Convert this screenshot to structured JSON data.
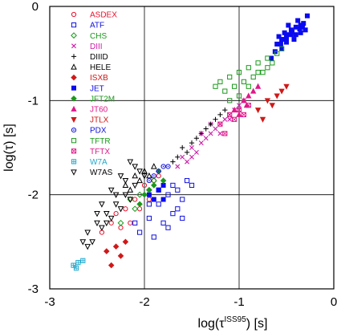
{
  "chart_data": {
    "type": "scatter",
    "title": "",
    "xlabel_base": "log(τ",
    "xlabel_sup": "ISS95",
    "xlabel_tail": ") [s]",
    "ylabel": "log(τ) [s]",
    "xlim": [
      -3,
      0
    ],
    "ylim": [
      -3,
      0
    ],
    "grid": true,
    "legend_position": "top-left",
    "x_ticks": [
      {
        "value": -3,
        "label": "-3"
      },
      {
        "value": -2,
        "label": "-2"
      },
      {
        "value": -1,
        "label": "-1"
      },
      {
        "value": 0,
        "label": "0"
      }
    ],
    "y_ticks": [
      {
        "value": 0,
        "label": "0"
      },
      {
        "value": -1,
        "label": "-1"
      },
      {
        "value": -2,
        "label": "-2"
      },
      {
        "value": -3,
        "label": "-3"
      }
    ],
    "series": [
      {
        "name": "ASDEX",
        "marker": "circle-open",
        "color": "#e8112d",
        "points": [
          [
            -2.45,
            -2.4
          ],
          [
            -2.3,
            -2.2
          ],
          [
            -2.2,
            -2.15
          ],
          [
            -2.1,
            -2.05
          ],
          [
            -2.0,
            -1.9
          ],
          [
            -1.9,
            -1.85
          ],
          [
            -2.15,
            -2.3
          ],
          [
            -2.05,
            -2.15
          ],
          [
            -1.95,
            -2.05
          ],
          [
            -2.25,
            -2.35
          ],
          [
            -2.35,
            -2.3
          ],
          [
            -1.85,
            -1.8
          ]
        ]
      },
      {
        "name": "ATF",
        "marker": "square-open",
        "color": "#1010e0",
        "points": [
          [
            -1.95,
            -2.25
          ],
          [
            -1.85,
            -2.1
          ],
          [
            -1.75,
            -2.0
          ],
          [
            -1.65,
            -1.95
          ],
          [
            -1.8,
            -2.3
          ],
          [
            -1.7,
            -2.2
          ],
          [
            -1.6,
            -2.05
          ],
          [
            -1.55,
            -1.85
          ],
          [
            -2.05,
            -2.4
          ],
          [
            -1.9,
            -2.45
          ],
          [
            -1.75,
            -2.35
          ],
          [
            -1.85,
            -1.95
          ],
          [
            -1.6,
            -2.25
          ],
          [
            -1.7,
            -1.9
          ],
          [
            -1.95,
            -2.1
          ],
          [
            -2.1,
            -2.3
          ],
          [
            -1.5,
            -1.9
          ],
          [
            -1.65,
            -2.15
          ]
        ]
      },
      {
        "name": "CHS",
        "marker": "diamond-open",
        "color": "#1a9a1a",
        "points": [
          [
            -2.15,
            -2.05
          ],
          [
            -2.05,
            -2.0
          ],
          [
            -1.95,
            -1.95
          ],
          [
            -2.25,
            -2.3
          ],
          [
            -1.9,
            -1.85
          ],
          [
            -2.1,
            -2.15
          ]
        ]
      },
      {
        "name": "DIII",
        "marker": "x",
        "color": "#cc1aa8",
        "points": [
          [
            -1.6,
            -1.6
          ],
          [
            -1.5,
            -1.5
          ],
          [
            -1.4,
            -1.45
          ],
          [
            -1.3,
            -1.35
          ],
          [
            -1.2,
            -1.25
          ],
          [
            -1.1,
            -1.15
          ],
          [
            -1.0,
            -1.05
          ],
          [
            -1.45,
            -1.55
          ],
          [
            -1.35,
            -1.4
          ],
          [
            -1.25,
            -1.3
          ],
          [
            -1.15,
            -1.2
          ],
          [
            -1.05,
            -1.1
          ],
          [
            -1.55,
            -1.65
          ],
          [
            -1.65,
            -1.7
          ],
          [
            -0.95,
            -1.0
          ],
          [
            -1.2,
            -1.35
          ],
          [
            -1.3,
            -1.25
          ],
          [
            -1.4,
            -1.35
          ],
          [
            -1.5,
            -1.6
          ],
          [
            -1.1,
            -1.2
          ]
        ]
      },
      {
        "name": "DIIID",
        "marker": "plus",
        "color": "#000000",
        "points": [
          [
            -1.7,
            -1.65
          ],
          [
            -1.55,
            -1.55
          ],
          [
            -1.45,
            -1.4
          ],
          [
            -1.35,
            -1.3
          ],
          [
            -1.25,
            -1.2
          ],
          [
            -1.15,
            -1.1
          ],
          [
            -1.6,
            -1.5
          ],
          [
            -1.5,
            -1.45
          ],
          [
            -1.4,
            -1.35
          ],
          [
            -1.3,
            -1.25
          ],
          [
            -1.2,
            -1.15
          ],
          [
            -1.65,
            -1.6
          ]
        ]
      },
      {
        "name": "HELE",
        "marker": "triangle-up-open",
        "color": "#000000",
        "points": [
          [
            -2.1,
            -1.8
          ],
          [
            -2.0,
            -1.75
          ],
          [
            -1.9,
            -1.7
          ],
          [
            -2.2,
            -1.9
          ],
          [
            -2.05,
            -1.85
          ],
          [
            -1.95,
            -1.8
          ],
          [
            -2.15,
            -1.95
          ]
        ]
      },
      {
        "name": "ISXB",
        "marker": "diamond-filled",
        "color": "#d01818",
        "points": [
          [
            -2.4,
            -2.6
          ],
          [
            -2.3,
            -2.55
          ],
          [
            -2.35,
            -2.75
          ],
          [
            -2.2,
            -2.5
          ],
          [
            -2.25,
            -2.65
          ]
        ]
      },
      {
        "name": "JET",
        "marker": "square-filled",
        "color": "#0a0af0",
        "points": [
          [
            -0.6,
            -0.4
          ],
          [
            -0.55,
            -0.35
          ],
          [
            -0.5,
            -0.3
          ],
          [
            -0.45,
            -0.25
          ],
          [
            -0.4,
            -0.22
          ],
          [
            -0.35,
            -0.2
          ],
          [
            -0.3,
            -0.25
          ],
          [
            -0.45,
            -0.3
          ],
          [
            -0.5,
            -0.38
          ],
          [
            -0.55,
            -0.45
          ],
          [
            -0.4,
            -0.3
          ],
          [
            -0.35,
            -0.28
          ],
          [
            -0.32,
            -0.18
          ],
          [
            -0.48,
            -0.2
          ],
          [
            -0.52,
            -0.28
          ],
          [
            -0.58,
            -0.32
          ],
          [
            -0.42,
            -0.35
          ],
          [
            -0.38,
            -0.15
          ],
          [
            -0.33,
            -0.22
          ],
          [
            -0.62,
            -0.48
          ],
          [
            -0.28,
            -0.1
          ],
          [
            -0.36,
            -0.24
          ],
          [
            -0.44,
            -0.27
          ],
          [
            -0.5,
            -0.34
          ],
          [
            -0.56,
            -0.4
          ],
          [
            -0.66,
            -0.55
          ],
          [
            -1.8,
            -1.9
          ],
          [
            -1.85,
            -1.95
          ],
          [
            -1.9,
            -2.05
          ],
          [
            -1.95,
            -2.0
          ],
          [
            -1.8,
            -2.05
          ]
        ]
      },
      {
        "name": "JFT2M",
        "marker": "diamond-filled",
        "color": "#1a9a1a",
        "points": [
          [
            -2.0,
            -2.0
          ],
          [
            -1.9,
            -1.9
          ],
          [
            -1.8,
            -1.85
          ],
          [
            -2.05,
            -2.1
          ],
          [
            -1.95,
            -1.95
          ],
          [
            -1.85,
            -1.75
          ]
        ]
      },
      {
        "name": "JT60",
        "marker": "triangle-up-filled",
        "color": "#e0188a",
        "points": [
          [
            -1.05,
            -1.1
          ],
          [
            -0.95,
            -1.0
          ],
          [
            -0.9,
            -0.95
          ],
          [
            -0.85,
            -0.9
          ],
          [
            -0.8,
            -0.85
          ],
          [
            -1.0,
            -1.15
          ],
          [
            -0.92,
            -1.05
          ]
        ]
      },
      {
        "name": "JTLX",
        "marker": "triangle-down-filled",
        "color": "#d01818",
        "points": [
          [
            -0.8,
            -1.1
          ],
          [
            -0.7,
            -1.0
          ],
          [
            -0.6,
            -0.95
          ],
          [
            -0.5,
            -0.85
          ],
          [
            -0.75,
            -1.2
          ],
          [
            -0.65,
            -1.05
          ],
          [
            -0.55,
            -0.9
          ]
        ]
      },
      {
        "name": "PDX",
        "marker": "circle-dot-open",
        "color": "#1010e0",
        "points": [
          [
            -1.9,
            -1.8
          ],
          [
            -1.85,
            -1.75
          ],
          [
            -1.8,
            -1.7
          ],
          [
            -1.75,
            -1.7
          ],
          [
            -1.95,
            -1.85
          ]
        ]
      },
      {
        "name": "TFTR",
        "marker": "square-open",
        "color": "#1a9a1a",
        "points": [
          [
            -1.2,
            -0.8
          ],
          [
            -1.1,
            -0.75
          ],
          [
            -1.0,
            -0.7
          ],
          [
            -0.9,
            -0.65
          ],
          [
            -0.8,
            -0.6
          ],
          [
            -0.7,
            -0.55
          ],
          [
            -1.15,
            -0.9
          ],
          [
            -1.05,
            -0.85
          ],
          [
            -0.95,
            -0.8
          ],
          [
            -0.85,
            -0.75
          ],
          [
            -0.75,
            -0.7
          ],
          [
            -0.65,
            -0.6
          ],
          [
            -0.6,
            -0.5
          ],
          [
            -1.0,
            -0.95
          ],
          [
            -0.9,
            -0.85
          ],
          [
            -0.8,
            -0.7
          ],
          [
            -1.25,
            -0.85
          ],
          [
            -0.7,
            -0.65
          ],
          [
            -0.55,
            -0.45
          ],
          [
            -1.1,
            -1.0
          ]
        ]
      },
      {
        "name": "TFTX",
        "marker": "square-x",
        "color": "#e0188a",
        "points": [
          [
            -1.2,
            -1.25
          ],
          [
            -1.1,
            -1.15
          ],
          [
            -1.0,
            -1.1
          ],
          [
            -0.9,
            -1.05
          ],
          [
            -1.15,
            -1.35
          ],
          [
            -1.05,
            -1.2
          ],
          [
            -0.95,
            -1.15
          ]
        ]
      },
      {
        "name": "W7A",
        "marker": "square-hash",
        "color": "#22a8cc",
        "points": [
          [
            -2.75,
            -2.75
          ],
          [
            -2.7,
            -2.72
          ],
          [
            -2.65,
            -2.7
          ],
          [
            -2.72,
            -2.78
          ]
        ]
      },
      {
        "name": "W7AS",
        "marker": "triangle-down-open",
        "color": "#000000",
        "points": [
          [
            -2.6,
            -2.4
          ],
          [
            -2.5,
            -2.3
          ],
          [
            -2.4,
            -2.2
          ],
          [
            -2.3,
            -2.1
          ],
          [
            -2.2,
            -2.0
          ],
          [
            -2.1,
            -1.9
          ],
          [
            -2.0,
            -1.8
          ],
          [
            -2.55,
            -2.5
          ],
          [
            -2.45,
            -2.35
          ],
          [
            -2.35,
            -2.25
          ],
          [
            -2.25,
            -2.15
          ],
          [
            -2.15,
            -2.05
          ],
          [
            -2.05,
            -1.75
          ],
          [
            -2.65,
            -2.5
          ],
          [
            -2.5,
            -2.2
          ],
          [
            -2.4,
            -2.3
          ],
          [
            -2.3,
            -2.0
          ],
          [
            -2.2,
            -1.85
          ],
          [
            -2.1,
            -1.7
          ],
          [
            -2.6,
            -2.55
          ],
          [
            -2.45,
            -2.1
          ],
          [
            -2.35,
            -1.95
          ],
          [
            -2.25,
            -1.8
          ],
          [
            -2.15,
            -1.65
          ]
        ]
      }
    ]
  }
}
